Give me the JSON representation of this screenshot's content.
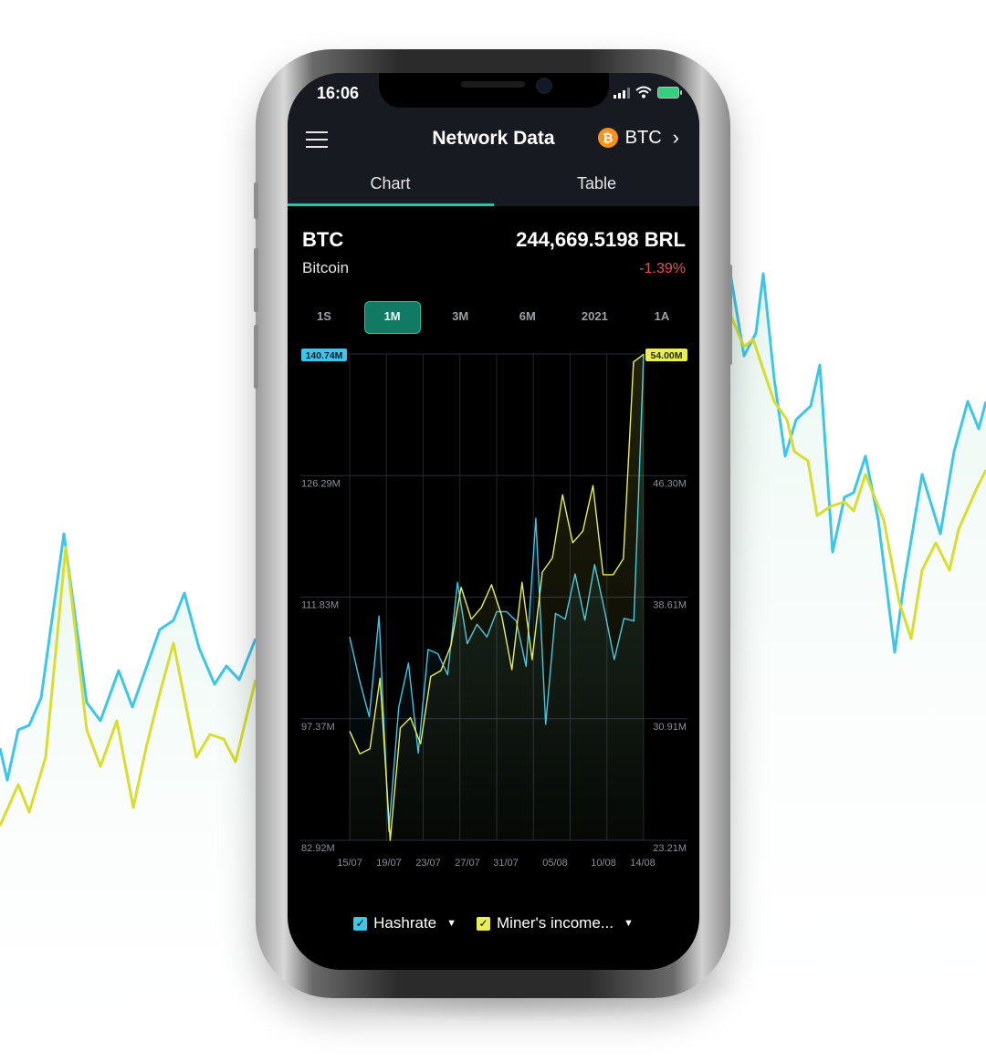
{
  "status_bar": {
    "time": "16:06"
  },
  "header": {
    "title": "Network Data",
    "coin_code": "BTC",
    "coin_icon": "bitcoin-icon"
  },
  "tabs": [
    {
      "label": "Chart",
      "active": true
    },
    {
      "label": "Table",
      "active": false
    }
  ],
  "coin": {
    "symbol": "BTC",
    "name": "Bitcoin",
    "price": "244,669.5198 BRL",
    "change": "-1.39%"
  },
  "periods": [
    {
      "label": "1S",
      "active": false
    },
    {
      "label": "1M",
      "active": true
    },
    {
      "label": "3M",
      "active": false
    },
    {
      "label": "6M",
      "active": false
    },
    {
      "label": "2021",
      "active": false
    },
    {
      "label": "1A",
      "active": false
    }
  ],
  "legend": [
    {
      "label": "Hashrate",
      "checked": true
    },
    {
      "label": "Miner's income...",
      "checked": true
    }
  ],
  "colors": {
    "hashrate": "#3ec6e8",
    "income": "#e9ef52",
    "accent": "#1ec9a8",
    "negative": "#e5534b"
  },
  "chart_data": {
    "type": "line",
    "x_ticks": [
      "15/07",
      "19/07",
      "23/07",
      "27/07",
      "31/07",
      "05/08",
      "10/08",
      "14/08"
    ],
    "left_axis_ticks": [
      "82.92M",
      "97.37M",
      "111.83M",
      "126.29M",
      "140.74M"
    ],
    "right_axis_ticks": [
      "23.21M",
      "30.91M",
      "38.61M",
      "46.30M",
      "54.00M"
    ],
    "left_max_badge": "140.74M",
    "right_max_badge": "54.00M",
    "left_ylim": [
      82.92,
      140.74
    ],
    "right_ylim": [
      23.21,
      54.0
    ],
    "series": [
      {
        "name": "Hashrate",
        "axis": "left",
        "values": [
          107.1,
          102.0,
          97.6,
          109.6,
          84.0,
          98.7,
          104.0,
          93.3,
          105.6,
          105.1,
          102.6,
          113.6,
          106.3,
          108.6,
          107.1,
          110.1,
          110.1,
          109.0,
          103.6,
          121.2,
          96.7,
          109.9,
          109.2,
          114.6,
          109.1,
          115.7,
          110.3,
          104.4,
          109.3,
          109.0,
          140.7
        ]
      },
      {
        "name": "Miner's income...",
        "axis": "left",
        "values": [
          95.9,
          93.2,
          93.8,
          102.2,
          82.9,
          96.3,
          97.5,
          94.4,
          102.4,
          103.1,
          106.1,
          113.0,
          109.2,
          110.6,
          113.3,
          109.6,
          103.2,
          113.6,
          104.4,
          114.8,
          116.5,
          124.0,
          118.3,
          119.7,
          125.1,
          114.5,
          114.5,
          116.4,
          139.8,
          140.7
        ]
      }
    ],
    "grid": true
  }
}
